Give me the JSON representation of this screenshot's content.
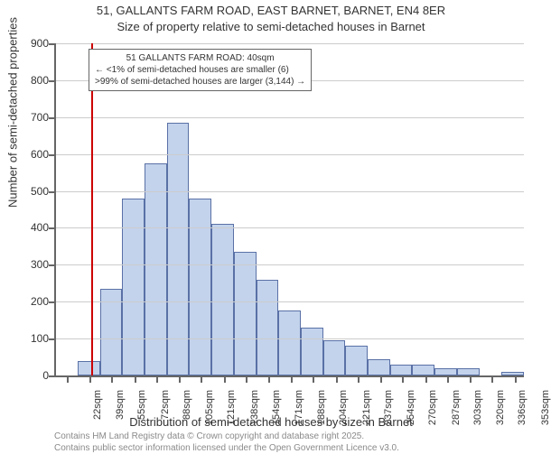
{
  "chart": {
    "type": "histogram",
    "title_line1": "51, GALLANTS FARM ROAD, EAST BARNET, BARNET, EN4 8ER",
    "title_line2": "Size of property relative to semi-detached houses in Barnet",
    "title_fontsize": 13,
    "background_color": "#ffffff",
    "plot_border_color": "#666666",
    "grid_color": "#cccccc",
    "x_axis": {
      "title": "Distribution of semi-detached houses by size in Barnet",
      "min": 14,
      "max": 360,
      "tick_values": [
        22,
        39,
        55,
        72,
        88,
        105,
        121,
        138,
        154,
        171,
        188,
        204,
        221,
        237,
        254,
        270,
        287,
        303,
        320,
        336,
        353
      ],
      "tick_unit": "sqm",
      "tick_fontsize": 11
    },
    "y_axis": {
      "title": "Number of semi-detached properties",
      "min": 0,
      "max": 900,
      "tick_step": 100,
      "tick_fontsize": 12
    },
    "bars": {
      "fill_color": "#c3d3ec",
      "border_color": "#5a71a6",
      "bin_start": 30,
      "bin_width": 16.5,
      "heights": [
        40,
        235,
        480,
        575,
        685,
        480,
        410,
        335,
        260,
        175,
        130,
        95,
        80,
        45,
        30,
        30,
        20,
        20,
        0,
        10,
        0
      ]
    },
    "reference_line": {
      "x": 40,
      "color": "#cc0000",
      "width": 2
    },
    "annotation": {
      "line1": "51 GALLANTS FARM ROAD: 40sqm",
      "line2": "← <1% of semi-detached houses are smaller (6)",
      "line3": ">99% of semi-detached houses are larger (3,144) →",
      "border_color": "#666666",
      "background": "#ffffff",
      "fontsize": 10
    },
    "footer": {
      "line1": "Contains HM Land Registry data © Crown copyright and database right 2025.",
      "line2": "Contains public sector information licensed under the Open Government Licence v3.0.",
      "color": "#8a8a8a",
      "fontsize": 10
    }
  }
}
